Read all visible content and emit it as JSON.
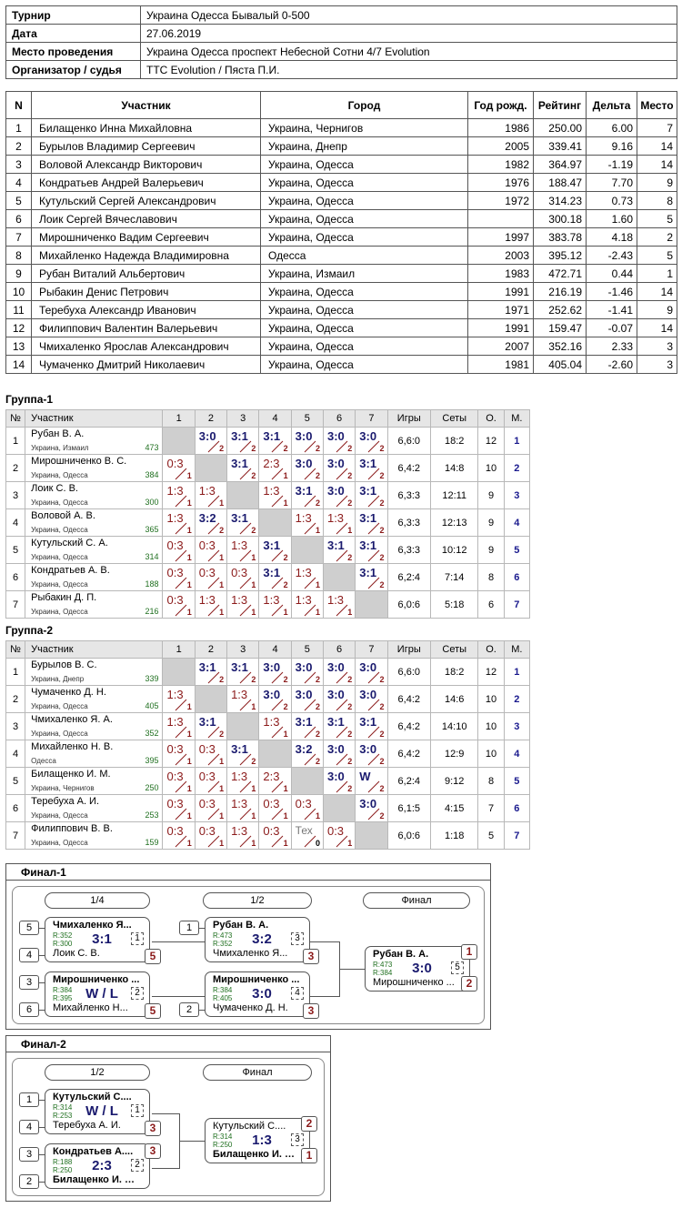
{
  "info": [
    {
      "key": "Турнир",
      "value": "Украина Одесса Бывалый 0-500"
    },
    {
      "key": "Дата",
      "value": "27.06.2019"
    },
    {
      "key": "Место проведения",
      "value": "Украина Одесса проспект Небесной Сотни 4/7 Evolution"
    },
    {
      "key": "Организатор / судья",
      "value": "TTC Evolution / Пяста П.И."
    }
  ],
  "participants_headers": [
    "N",
    "Участник",
    "Город",
    "Год рожд.",
    "Рейтинг",
    "Дельта",
    "Место"
  ],
  "participants": [
    [
      "1",
      "Билащенко Инна Михайловна",
      "Украина, Чернигов",
      "1986",
      "250.00",
      "6.00",
      "7"
    ],
    [
      "2",
      "Бурылов Владимир Сергеевич",
      "Украина, Днепр",
      "2005",
      "339.41",
      "9.16",
      "14"
    ],
    [
      "3",
      "Воловой Александр Викторович",
      "Украина, Одесса",
      "1982",
      "364.97",
      "-1.19",
      "14"
    ],
    [
      "4",
      "Кондратьев Андрей Валерьевич",
      "Украина, Одесса",
      "1976",
      "188.47",
      "7.70",
      "9"
    ],
    [
      "5",
      "Кутульский Сергей Александрович",
      "Украина, Одесса",
      "1972",
      "314.23",
      "0.73",
      "8"
    ],
    [
      "6",
      "Лоик Сергей Вячеславович",
      "Украина, Одесса",
      "",
      "300.18",
      "1.60",
      "5"
    ],
    [
      "7",
      "Мирошниченко Вадим Сергеевич",
      "Украина, Одесса",
      "1997",
      "383.78",
      "4.18",
      "2"
    ],
    [
      "8",
      "Михайленко Надежда Владимировна",
      "Одесса",
      "2003",
      "395.12",
      "-2.43",
      "5"
    ],
    [
      "9",
      "Рубан Виталий Альбертович",
      "Украина, Измаил",
      "1983",
      "472.71",
      "0.44",
      "1"
    ],
    [
      "10",
      "Рыбакин Денис Петрович",
      "Украина, Одесса",
      "1991",
      "216.19",
      "-1.46",
      "14"
    ],
    [
      "11",
      "Теребуха Александр Иванович",
      "Украина, Одесса",
      "1971",
      "252.62",
      "-1.41",
      "9"
    ],
    [
      "12",
      "Филиппович Валентин Валерьевич",
      "Украина, Одесса",
      "1991",
      "159.47",
      "-0.07",
      "14"
    ],
    [
      "13",
      "Чмихаленко Ярослав Александрович",
      "Украина, Одесса",
      "2007",
      "352.16",
      "2.33",
      "3"
    ],
    [
      "14",
      "Чумаченко Дмитрий Николаевич",
      "Украина, Одесса",
      "1981",
      "405.04",
      "-2.60",
      "3"
    ]
  ],
  "group_headers": [
    "№",
    "Участник",
    "1",
    "2",
    "3",
    "4",
    "5",
    "6",
    "7",
    "Игры",
    "Сеты",
    "О.",
    "М."
  ],
  "groups": [
    {
      "title": "Группа-1",
      "rows": [
        {
          "n": "1",
          "name": "Рубан В. А.",
          "city": "Украина, Измаил",
          "rating": "473",
          "cells": [
            null,
            [
              "3:0",
              "2",
              "w"
            ],
            [
              "3:1",
              "2",
              "w"
            ],
            [
              "3:1",
              "2",
              "w"
            ],
            [
              "3:0",
              "2",
              "w"
            ],
            [
              "3:0",
              "2",
              "w"
            ],
            [
              "3:0",
              "2",
              "w"
            ]
          ],
          "games": "6,6:0",
          "sets": "18:2",
          "pts": "12",
          "place": "1"
        },
        {
          "n": "2",
          "name": "Мирошниченко В. С.",
          "city": "Украина, Одесса",
          "rating": "384",
          "cells": [
            [
              "0:3",
              "1",
              "l"
            ],
            null,
            [
              "3:1",
              "2",
              "w"
            ],
            [
              "2:3",
              "1",
              "l"
            ],
            [
              "3:0",
              "2",
              "w"
            ],
            [
              "3:0",
              "2",
              "w"
            ],
            [
              "3:1",
              "2",
              "w"
            ]
          ],
          "games": "6,4:2",
          "sets": "14:8",
          "pts": "10",
          "place": "2"
        },
        {
          "n": "3",
          "name": "Лоик С. В.",
          "city": "Украина, Одесса",
          "rating": "300",
          "cells": [
            [
              "1:3",
              "1",
              "l"
            ],
            [
              "1:3",
              "1",
              "l"
            ],
            null,
            [
              "1:3",
              "1",
              "l"
            ],
            [
              "3:1",
              "2",
              "w"
            ],
            [
              "3:0",
              "2",
              "w"
            ],
            [
              "3:1",
              "2",
              "w"
            ]
          ],
          "games": "6,3:3",
          "sets": "12:11",
          "pts": "9",
          "place": "3"
        },
        {
          "n": "4",
          "name": "Воловой А. В.",
          "city": "Украина, Одесса",
          "rating": "365",
          "cells": [
            [
              "1:3",
              "1",
              "l"
            ],
            [
              "3:2",
              "2",
              "w"
            ],
            [
              "3:1",
              "2",
              "w"
            ],
            null,
            [
              "1:3",
              "1",
              "l"
            ],
            [
              "1:3",
              "1",
              "l"
            ],
            [
              "3:1",
              "2",
              "w"
            ]
          ],
          "games": "6,3:3",
          "sets": "12:13",
          "pts": "9",
          "place": "4"
        },
        {
          "n": "5",
          "name": "Кутульский С. А.",
          "city": "Украина, Одесса",
          "rating": "314",
          "cells": [
            [
              "0:3",
              "1",
              "l"
            ],
            [
              "0:3",
              "1",
              "l"
            ],
            [
              "1:3",
              "1",
              "l"
            ],
            [
              "3:1",
              "2",
              "w"
            ],
            null,
            [
              "3:1",
              "2",
              "w"
            ],
            [
              "3:1",
              "2",
              "w"
            ]
          ],
          "games": "6,3:3",
          "sets": "10:12",
          "pts": "9",
          "place": "5"
        },
        {
          "n": "6",
          "name": "Кондратьев А. В.",
          "city": "Украина, Одесса",
          "rating": "188",
          "cells": [
            [
              "0:3",
              "1",
              "l"
            ],
            [
              "0:3",
              "1",
              "l"
            ],
            [
              "0:3",
              "1",
              "l"
            ],
            [
              "3:1",
              "2",
              "w"
            ],
            [
              "1:3",
              "1",
              "l"
            ],
            null,
            [
              "3:1",
              "2",
              "w"
            ]
          ],
          "games": "6,2:4",
          "sets": "7:14",
          "pts": "8",
          "place": "6"
        },
        {
          "n": "7",
          "name": "Рыбакин Д. П.",
          "city": "Украина, Одесса",
          "rating": "216",
          "cells": [
            [
              "0:3",
              "1",
              "l"
            ],
            [
              "1:3",
              "1",
              "l"
            ],
            [
              "1:3",
              "1",
              "l"
            ],
            [
              "1:3",
              "1",
              "l"
            ],
            [
              "1:3",
              "1",
              "l"
            ],
            [
              "1:3",
              "1",
              "l"
            ],
            null
          ],
          "games": "6,0:6",
          "sets": "5:18",
          "pts": "6",
          "place": "7"
        }
      ]
    },
    {
      "title": "Группа-2",
      "rows": [
        {
          "n": "1",
          "name": "Бурылов В. С.",
          "city": "Украина, Днепр",
          "rating": "339",
          "cells": [
            null,
            [
              "3:1",
              "2",
              "w"
            ],
            [
              "3:1",
              "2",
              "w"
            ],
            [
              "3:0",
              "2",
              "w"
            ],
            [
              "3:0",
              "2",
              "w"
            ],
            [
              "3:0",
              "2",
              "w"
            ],
            [
              "3:0",
              "2",
              "w"
            ]
          ],
          "games": "6,6:0",
          "sets": "18:2",
          "pts": "12",
          "place": "1"
        },
        {
          "n": "2",
          "name": "Чумаченко Д. Н.",
          "city": "Украина, Одесса",
          "rating": "405",
          "cells": [
            [
              "1:3",
              "1",
              "l"
            ],
            null,
            [
              "1:3",
              "1",
              "l"
            ],
            [
              "3:0",
              "2",
              "w"
            ],
            [
              "3:0",
              "2",
              "w"
            ],
            [
              "3:0",
              "2",
              "w"
            ],
            [
              "3:0",
              "2",
              "w"
            ]
          ],
          "games": "6,4:2",
          "sets": "14:6",
          "pts": "10",
          "place": "2"
        },
        {
          "n": "3",
          "name": "Чмихаленко Я. А.",
          "city": "Украина, Одесса",
          "rating": "352",
          "cells": [
            [
              "1:3",
              "1",
              "l"
            ],
            [
              "3:1",
              "2",
              "w"
            ],
            null,
            [
              "1:3",
              "1",
              "l"
            ],
            [
              "3:1",
              "2",
              "w"
            ],
            [
              "3:1",
              "2",
              "w"
            ],
            [
              "3:1",
              "2",
              "w"
            ]
          ],
          "games": "6,4:2",
          "sets": "14:10",
          "pts": "10",
          "place": "3"
        },
        {
          "n": "4",
          "name": "Михайленко Н. В.",
          "city": "Одесса",
          "rating": "395",
          "cells": [
            [
              "0:3",
              "1",
              "l"
            ],
            [
              "0:3",
              "1",
              "l"
            ],
            [
              "3:1",
              "2",
              "w"
            ],
            null,
            [
              "3:2",
              "2",
              "w"
            ],
            [
              "3:0",
              "2",
              "w"
            ],
            [
              "3:0",
              "2",
              "w"
            ]
          ],
          "games": "6,4:2",
          "sets": "12:9",
          "pts": "10",
          "place": "4"
        },
        {
          "n": "5",
          "name": "Билащенко И. М.",
          "city": "Украина, Чернигов",
          "rating": "250",
          "cells": [
            [
              "0:3",
              "1",
              "l"
            ],
            [
              "0:3",
              "1",
              "l"
            ],
            [
              "1:3",
              "1",
              "l"
            ],
            [
              "2:3",
              "1",
              "l"
            ],
            null,
            [
              "3:0",
              "2",
              "w"
            ],
            [
              "W",
              "2",
              "w"
            ]
          ],
          "games": "6,2:4",
          "sets": "9:12",
          "pts": "8",
          "place": "5"
        },
        {
          "n": "6",
          "name": "Теребуха А. И.",
          "city": "Украина, Одесса",
          "rating": "253",
          "cells": [
            [
              "0:3",
              "1",
              "l"
            ],
            [
              "0:3",
              "1",
              "l"
            ],
            [
              "1:3",
              "1",
              "l"
            ],
            [
              "0:3",
              "1",
              "l"
            ],
            [
              "0:3",
              "1",
              "l"
            ],
            null,
            [
              "3:0",
              "2",
              "w"
            ]
          ],
          "games": "6,1:5",
          "sets": "4:15",
          "pts": "7",
          "place": "6"
        },
        {
          "n": "7",
          "name": "Филиппович В. В.",
          "city": "Украина, Одесса",
          "rating": "159",
          "cells": [
            [
              "0:3",
              "1",
              "l"
            ],
            [
              "0:3",
              "1",
              "l"
            ],
            [
              "1:3",
              "1",
              "l"
            ],
            [
              "0:3",
              "1",
              "l"
            ],
            [
              "Тех",
              "0",
              "t"
            ],
            [
              "0:3",
              "1",
              "l"
            ],
            null
          ],
          "games": "6,0:6",
          "sets": "1:18",
          "pts": "5",
          "place": "7"
        }
      ]
    }
  ],
  "final1": {
    "title": "Финал-1",
    "rounds": [
      "1/4",
      "1/2",
      "Финал"
    ],
    "seeds": [
      "5",
      "4",
      "3",
      "6",
      "1",
      "2"
    ],
    "m1": {
      "p1": "Чмихаленко Я...",
      "r1": "R:352",
      "p2": "Лоик С. В.",
      "r2": "R:300",
      "score": "3:1",
      "table": "1",
      "rank": "5"
    },
    "m2": {
      "p1": "Мирошниченко ...",
      "r1": "R:384",
      "p2": "Михайленко Н...",
      "r2": "R:395",
      "score": "W / L",
      "table": "2",
      "rank": "5"
    },
    "m3": {
      "p1": "Рубан В. А.",
      "r1": "R:473",
      "p2": "Чмихаленко Я...",
      "r2": "R:352",
      "score": "3:2",
      "table": "3",
      "rank": "3"
    },
    "m4": {
      "p1": "Мирошниченко ...",
      "r1": "R:384",
      "p2": "Чумаченко Д. Н.",
      "r2": "R:405",
      "score": "3:0",
      "table": "4",
      "rank": "3"
    },
    "m5": {
      "p1": "Рубан В. А.",
      "r1": "R:473",
      "p2": "Мирошниченко ...",
      "r2": "R:384",
      "score": "3:0",
      "table": "5",
      "rank1": "1",
      "rank2": "2"
    }
  },
  "final2": {
    "title": "Финал-2",
    "rounds": [
      "1/2",
      "Финал"
    ],
    "seeds": [
      "1",
      "4",
      "3",
      "2"
    ],
    "m1": {
      "p1": "Кутульский С....",
      "r1": "R:314",
      "p2": "Теребуха А. И.",
      "r2": "R:253",
      "score": "W / L",
      "table": "1",
      "rank": "3"
    },
    "m2": {
      "p1": "Кондратьев А....",
      "r1": "R:188",
      "p2": "Билащенко И. М.",
      "r2": "R:250",
      "score": "2:3",
      "table": "2",
      "rank": "3"
    },
    "m3": {
      "p1": "Кутульский С....",
      "r1": "R:314",
      "p2": "Билащенко И. М.",
      "r2": "R:250",
      "score": "1:3",
      "table": "3",
      "rank1": "2",
      "rank2": "1"
    }
  }
}
